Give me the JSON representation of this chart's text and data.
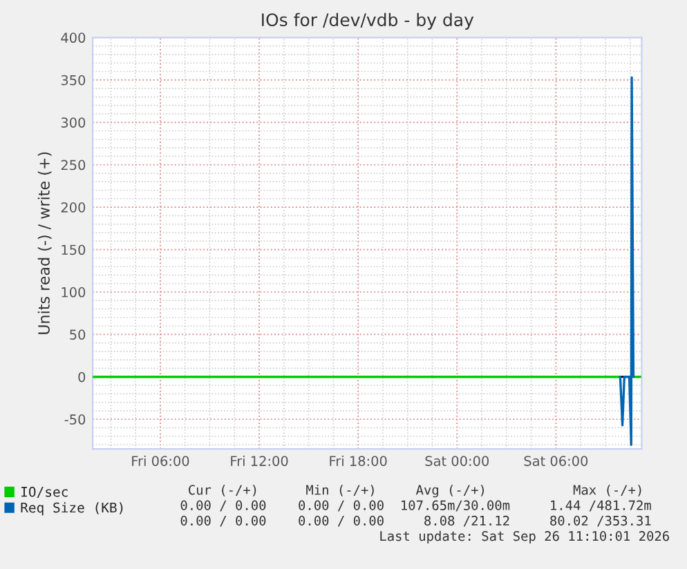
{
  "chart_data": {
    "type": "line",
    "title": "IOs for /dev/vdb - by day",
    "ylabel": "Units read (-) / write (+)",
    "xlim": [
      "2026-09-25T01:54",
      "2026-09-26T11:12"
    ],
    "xticks": [
      {
        "value": "2026-09-25T06:00",
        "label": "Fri 06:00"
      },
      {
        "value": "2026-09-25T12:00",
        "label": "Fri 12:00"
      },
      {
        "value": "2026-09-25T18:00",
        "label": "Fri 18:00"
      },
      {
        "value": "2026-09-26T00:00",
        "label": "Sat 00:00"
      },
      {
        "value": "2026-09-26T06:00",
        "label": "Sat 06:00"
      }
    ],
    "ylim": [
      -85,
      400
    ],
    "yticks": [
      -50,
      0,
      50,
      100,
      150,
      200,
      250,
      300,
      350,
      400
    ],
    "grid": true,
    "legend": "bottom left",
    "line_style": "solid",
    "marker": "none",
    "ref_lines": [
      {
        "axis": "y",
        "value": 0,
        "color": "#000000"
      }
    ],
    "series": [
      {
        "name": "IO/sec",
        "color": "#00cc00",
        "x": [
          "2026-09-25T01:54",
          "2026-09-26T09:50",
          "2026-09-26T10:20",
          "2026-09-26T10:45",
          "2026-09-26T11:06"
        ],
        "values": [
          0,
          0,
          null,
          0,
          0
        ]
      },
      {
        "name": "Req Size (KB)",
        "color": "#0066b3",
        "x": [
          "2026-09-26T09:54",
          "2026-09-26T10:02",
          "2026-09-26T10:09",
          "2026-09-26T10:27",
          "2026-09-26T10:34",
          "2026-09-26T10:36",
          "2026-09-26T10:42"
        ],
        "values": [
          0,
          -57,
          0,
          0,
          -80,
          353,
          0
        ]
      }
    ],
    "annotations": [
      " Cur (-/+)      Min (-/+)     Avg (-/+)           Max (-/+)",
      "0.00 / 0.00    0.00 / 0.00  107.65m/30.00m     1.44 /481.72m",
      "0.00 / 0.00    0.00 / 0.00     8.08 /21.12     80.02 /353.31",
      "Last update: Sat Sep 26 11:10:01 2026"
    ]
  }
}
